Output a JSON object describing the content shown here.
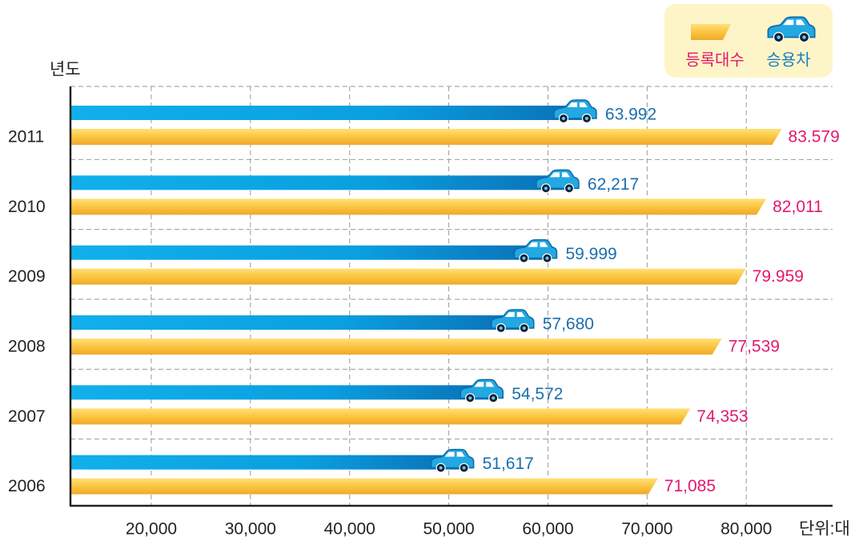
{
  "chart_data": {
    "type": "bar",
    "orientation": "horizontal",
    "y_label": "년도",
    "x_unit": "단위:대",
    "categories": [
      "2011",
      "2010",
      "2009",
      "2008",
      "2007",
      "2006"
    ],
    "series": [
      {
        "name": "승용차",
        "color": "#0aa0e0",
        "values": [
          63992,
          62217,
          59999,
          57680,
          54572,
          51617
        ],
        "value_labels": [
          "63.992",
          "62,217",
          "59.999",
          "57,680",
          "54,572",
          "51,617"
        ]
      },
      {
        "name": "등록대수",
        "color": "#fbc53f",
        "values": [
          83579,
          82011,
          79959,
          77539,
          74353,
          71085
        ],
        "value_labels": [
          "83.579",
          "82,011",
          "79.959",
          "77,539",
          "74,353",
          "71,085"
        ]
      }
    ],
    "xlim": [
      11850,
      88700
    ],
    "xticks": [
      {
        "value": 20000,
        "label": "20,000"
      },
      {
        "value": 30000,
        "label": "30,000"
      },
      {
        "value": 40000,
        "label": "40,000"
      },
      {
        "value": 50000,
        "label": "50,000"
      },
      {
        "value": 60000,
        "label": "60,000"
      },
      {
        "value": 70000,
        "label": "70,000"
      },
      {
        "value": 80000,
        "label": "80,000"
      }
    ],
    "grid": true,
    "legend": "top-right"
  }
}
